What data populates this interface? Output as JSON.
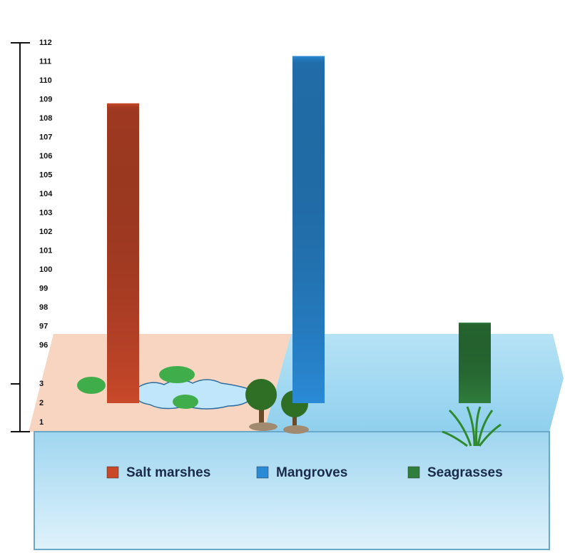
{
  "chart_data": {
    "type": "bar",
    "series": [
      {
        "name": "Salt marshes",
        "color": "#c9482a",
        "values": [
          108.8
        ]
      },
      {
        "name": "Mangroves",
        "color": "#2a8ad6",
        "values": [
          111.3
        ]
      },
      {
        "name": "Seagrasses",
        "color": "#2f7e3c",
        "values": [
          97.2
        ]
      }
    ],
    "ylim": [
      1,
      112
    ],
    "axis_break": [
      3,
      96
    ],
    "yticks": [
      1,
      2,
      3,
      96,
      97,
      98,
      99,
      100,
      101,
      102,
      103,
      104,
      105,
      106,
      107,
      108,
      109,
      110,
      111,
      112
    ]
  }
}
